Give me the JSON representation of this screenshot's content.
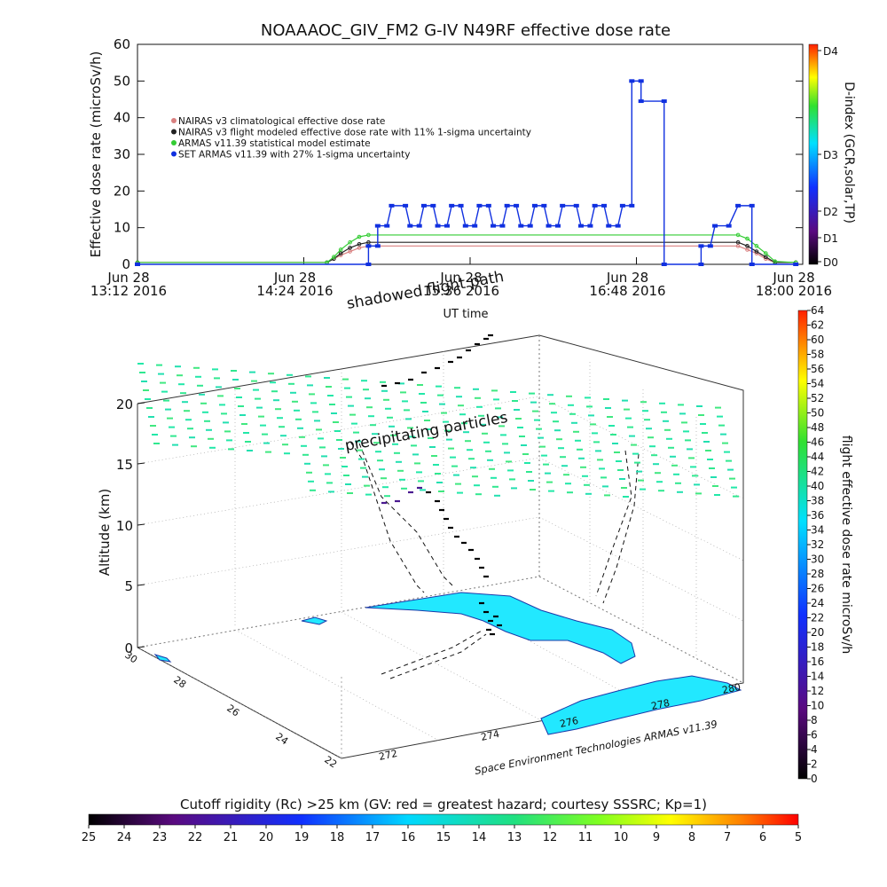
{
  "chart_data": [
    {
      "type": "line",
      "title": "NOAAAOC_GIV_FM2 G-IV   N49RF  effective dose rate",
      "ylabel": "Effective dose rate (microSv/h)",
      "xlabel": "UT time",
      "ylim": [
        0,
        60
      ],
      "yticks": [
        "0",
        "10",
        "20",
        "30",
        "40",
        "50",
        "60"
      ],
      "xticks": [
        {
          "line1": "Jun 28",
          "line2": "13:12 2016",
          "minutes": 0
        },
        {
          "line1": "Jun 28",
          "line2": "14:24 2016",
          "minutes": 72
        },
        {
          "line1": "Jun 28",
          "line2": "15:36 2016",
          "minutes": 144
        },
        {
          "line1": "Jun 28",
          "line2": "16:48 2016",
          "minutes": 216
        },
        {
          "line1": "Jun 28",
          "line2": "18:00 2016",
          "minutes": 288
        }
      ],
      "xlim_minutes": [
        0,
        288
      ],
      "right_axis": {
        "label": "D-index (GCR,solar,TP)",
        "ticks": [
          "D0",
          "D1",
          "D2",
          "D3",
          "D4"
        ]
      },
      "legend": [
        {
          "label": "NAIRAS v3 climatological effective dose rate",
          "color": "#d98080"
        },
        {
          "label": "NAIRAS v3 flight modeled effective dose rate with 11% 1-sigma uncertainty",
          "color": "#222222"
        },
        {
          "label": "ARMAS v11.39 statistical model estimate",
          "color": "#33cc33"
        },
        {
          "label": "SET ARMAS v11.39 with 27% 1-sigma uncertainty",
          "color": "#1030e0"
        }
      ],
      "series": [
        {
          "name": "NAIRAS v3 climatological effective dose rate",
          "color": "#d98080",
          "x": [
            0,
            82,
            85,
            88,
            92,
            96,
            100,
            260,
            264,
            268,
            272,
            276,
            285
          ],
          "y": [
            0.5,
            0.5,
            1.5,
            2.5,
            3.5,
            4.5,
            5,
            5,
            4,
            3,
            1.5,
            0.5,
            0.5
          ]
        },
        {
          "name": "NAIRAS v3 flight modeled effective dose rate with 11% 1-sigma uncertainty",
          "color": "#222222",
          "x": [
            0,
            82,
            85,
            88,
            92,
            96,
            100,
            260,
            264,
            268,
            272,
            276,
            285
          ],
          "y": [
            0.5,
            0.5,
            1.5,
            3,
            4.5,
            5.5,
            6,
            6,
            5,
            3.5,
            2,
            0.5,
            0.5
          ]
        },
        {
          "name": "ARMAS v11.39 statistical model estimate",
          "color": "#33cc33",
          "x": [
            0,
            82,
            85,
            88,
            92,
            96,
            100,
            260,
            264,
            268,
            272,
            276,
            285
          ],
          "y": [
            0.5,
            0.5,
            2,
            4,
            6,
            7.5,
            8,
            8,
            7,
            5,
            3,
            0.8,
            0.5
          ]
        },
        {
          "name": "SET ARMAS v11.39 with 27% 1-sigma uncertainty",
          "color": "#1030e0",
          "x": [
            0,
            100,
            100,
            104,
            104,
            108,
            110,
            116,
            118,
            122,
            124,
            128,
            130,
            134,
            136,
            140,
            142,
            146,
            148,
            152,
            154,
            158,
            160,
            164,
            166,
            170,
            172,
            176,
            178,
            182,
            184,
            190,
            192,
            196,
            198,
            202,
            204,
            208,
            210,
            214,
            214,
            218,
            218,
            228,
            228,
            244,
            244,
            248,
            250,
            256,
            260,
            266,
            266,
            285
          ],
          "y": [
            0,
            0,
            5,
            5,
            10.5,
            10.5,
            16,
            16,
            10.5,
            10.5,
            16,
            16,
            10.5,
            10.5,
            16,
            16,
            10.5,
            10.5,
            16,
            16,
            10.5,
            10.5,
            16,
            16,
            10.5,
            10.5,
            16,
            16,
            10.5,
            10.5,
            16,
            16,
            10.5,
            10.5,
            16,
            16,
            10.5,
            10.5,
            16,
            16,
            50,
            50,
            44.5,
            44.5,
            0,
            0,
            5,
            5,
            10.5,
            10.5,
            16,
            16,
            0,
            0
          ]
        }
      ]
    },
    {
      "type": "scatter",
      "zlabel": "Altitude (km)",
      "zticks": [
        "0",
        "5",
        "10",
        "15",
        "20"
      ],
      "lat_ticks": [
        "30",
        "28",
        "26",
        "24",
        "22"
      ],
      "lon_ticks": [
        "272",
        "274",
        "276",
        "278",
        "280"
      ],
      "colorbar_label": "flight effective dose rate microSv/h",
      "colorbar_ticks": [
        "0",
        "2",
        "4",
        "6",
        "8",
        "10",
        "12",
        "14",
        "16",
        "18",
        "20",
        "22",
        "24",
        "26",
        "28",
        "30",
        "32",
        "34",
        "36",
        "38",
        "40",
        "42",
        "44",
        "46",
        "48",
        "50",
        "52",
        "54",
        "56",
        "58",
        "60",
        "62",
        "64"
      ],
      "annotations": [
        "shadowed flight path",
        "precipitating particles"
      ],
      "credit": "Space Environment Technologies ARMAS v11.39"
    },
    {
      "type": "heatmap",
      "title": "Cutoff rigidity (Rc) >25 km (GV: red = greatest hazard; courtesy SSSRC; Kp=1)",
      "ticks": [
        "25",
        "24",
        "23",
        "22",
        "21",
        "20",
        "19",
        "18",
        "17",
        "16",
        "15",
        "14",
        "13",
        "12",
        "11",
        "10",
        "9",
        "8",
        "7",
        "6",
        "5"
      ]
    }
  ]
}
